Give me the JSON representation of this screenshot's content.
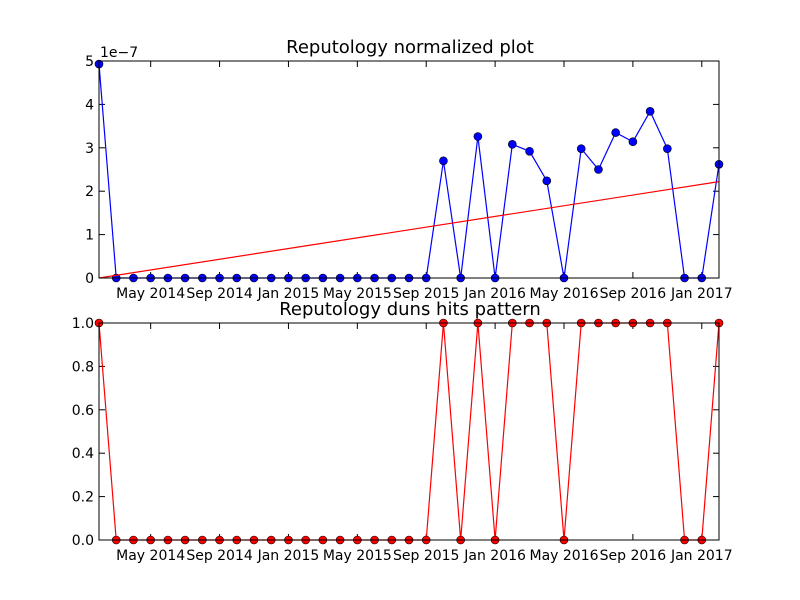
{
  "chart_data": [
    {
      "type": "line",
      "title": "Reputology normalized plot",
      "xlabel": "",
      "ylabel": "",
      "y_scale_label": "1e−7",
      "x_range": [
        "2014-02",
        "2017-02"
      ],
      "ylim": [
        0,
        5
      ],
      "y_ticks": [
        0,
        1,
        2,
        3,
        4,
        5
      ],
      "x_ticks": [
        {
          "value": "2014-05",
          "label": "May 2014"
        },
        {
          "value": "2014-09",
          "label": "Sep 2014"
        },
        {
          "value": "2015-01",
          "label": "Jan 2015"
        },
        {
          "value": "2015-05",
          "label": "May 2015"
        },
        {
          "value": "2015-09",
          "label": "Sep 2015"
        },
        {
          "value": "2016-01",
          "label": "Jan 2016"
        },
        {
          "value": "2016-05",
          "label": "May 2016"
        },
        {
          "value": "2016-09",
          "label": "Sep 2016"
        },
        {
          "value": "2017-01",
          "label": "Jan 2017"
        }
      ],
      "grid": false,
      "series": [
        {
          "color": "#0000ff",
          "marker": "circle",
          "points": [
            {
              "x": "2014-02",
              "y": 4.93
            },
            {
              "x": "2014-03",
              "y": 0
            },
            {
              "x": "2014-04",
              "y": 0
            },
            {
              "x": "2014-05",
              "y": 0
            },
            {
              "x": "2014-06",
              "y": 0
            },
            {
              "x": "2014-07",
              "y": 0
            },
            {
              "x": "2014-08",
              "y": 0
            },
            {
              "x": "2014-09",
              "y": 0
            },
            {
              "x": "2014-10",
              "y": 0
            },
            {
              "x": "2014-11",
              "y": 0
            },
            {
              "x": "2014-12",
              "y": 0
            },
            {
              "x": "2015-01",
              "y": 0
            },
            {
              "x": "2015-02",
              "y": 0
            },
            {
              "x": "2015-03",
              "y": 0
            },
            {
              "x": "2015-04",
              "y": 0
            },
            {
              "x": "2015-05",
              "y": 0
            },
            {
              "x": "2015-06",
              "y": 0
            },
            {
              "x": "2015-07",
              "y": 0
            },
            {
              "x": "2015-08",
              "y": 0
            },
            {
              "x": "2015-09",
              "y": 0
            },
            {
              "x": "2015-10",
              "y": 2.7
            },
            {
              "x": "2015-11",
              "y": 0
            },
            {
              "x": "2015-12",
              "y": 3.26
            },
            {
              "x": "2016-01",
              "y": 0
            },
            {
              "x": "2016-02",
              "y": 3.08
            },
            {
              "x": "2016-03",
              "y": 2.92
            },
            {
              "x": "2016-04",
              "y": 2.24
            },
            {
              "x": "2016-05",
              "y": 0
            },
            {
              "x": "2016-06",
              "y": 2.98
            },
            {
              "x": "2016-07",
              "y": 2.5
            },
            {
              "x": "2016-08",
              "y": 3.35
            },
            {
              "x": "2016-09",
              "y": 3.14
            },
            {
              "x": "2016-10",
              "y": 3.84
            },
            {
              "x": "2016-11",
              "y": 2.98
            },
            {
              "x": "2016-12",
              "y": 0
            },
            {
              "x": "2017-01",
              "y": 0
            },
            {
              "x": "2017-02",
              "y": 2.62
            }
          ]
        },
        {
          "color": "#ff0000",
          "marker": "none",
          "points": [
            {
              "x": "2014-02",
              "y": 0
            },
            {
              "x": "2017-02",
              "y": 2.22
            }
          ]
        }
      ]
    },
    {
      "type": "line",
      "title": "Reputology duns hits pattern",
      "xlabel": "",
      "ylabel": "",
      "x_range": [
        "2014-02",
        "2017-02"
      ],
      "ylim": [
        0,
        1
      ],
      "y_ticks": [
        0.0,
        0.2,
        0.4,
        0.6,
        0.8,
        1.0
      ],
      "x_ticks": [
        {
          "value": "2014-05",
          "label": "May 2014"
        },
        {
          "value": "2014-09",
          "label": "Sep 2014"
        },
        {
          "value": "2015-01",
          "label": "Jan 2015"
        },
        {
          "value": "2015-05",
          "label": "May 2015"
        },
        {
          "value": "2015-09",
          "label": "Sep 2015"
        },
        {
          "value": "2016-01",
          "label": "Jan 2016"
        },
        {
          "value": "2016-05",
          "label": "May 2016"
        },
        {
          "value": "2016-09",
          "label": "Sep 2016"
        },
        {
          "value": "2017-01",
          "label": "Jan 2017"
        }
      ],
      "grid": false,
      "series": [
        {
          "color": "#ff0000",
          "marker": "circle",
          "points": [
            {
              "x": "2014-02",
              "y": 1
            },
            {
              "x": "2014-03",
              "y": 0
            },
            {
              "x": "2014-04",
              "y": 0
            },
            {
              "x": "2014-05",
              "y": 0
            },
            {
              "x": "2014-06",
              "y": 0
            },
            {
              "x": "2014-07",
              "y": 0
            },
            {
              "x": "2014-08",
              "y": 0
            },
            {
              "x": "2014-09",
              "y": 0
            },
            {
              "x": "2014-10",
              "y": 0
            },
            {
              "x": "2014-11",
              "y": 0
            },
            {
              "x": "2014-12",
              "y": 0
            },
            {
              "x": "2015-01",
              "y": 0
            },
            {
              "x": "2015-02",
              "y": 0
            },
            {
              "x": "2015-03",
              "y": 0
            },
            {
              "x": "2015-04",
              "y": 0
            },
            {
              "x": "2015-05",
              "y": 0
            },
            {
              "x": "2015-06",
              "y": 0
            },
            {
              "x": "2015-07",
              "y": 0
            },
            {
              "x": "2015-08",
              "y": 0
            },
            {
              "x": "2015-09",
              "y": 0
            },
            {
              "x": "2015-10",
              "y": 1
            },
            {
              "x": "2015-11",
              "y": 0
            },
            {
              "x": "2015-12",
              "y": 1
            },
            {
              "x": "2016-01",
              "y": 0
            },
            {
              "x": "2016-02",
              "y": 1
            },
            {
              "x": "2016-03",
              "y": 1
            },
            {
              "x": "2016-04",
              "y": 1
            },
            {
              "x": "2016-05",
              "y": 0
            },
            {
              "x": "2016-06",
              "y": 1
            },
            {
              "x": "2016-07",
              "y": 1
            },
            {
              "x": "2016-08",
              "y": 1
            },
            {
              "x": "2016-09",
              "y": 1
            },
            {
              "x": "2016-10",
              "y": 1
            },
            {
              "x": "2016-11",
              "y": 1
            },
            {
              "x": "2016-12",
              "y": 0
            },
            {
              "x": "2017-01",
              "y": 0
            },
            {
              "x": "2017-02",
              "y": 1
            }
          ]
        }
      ]
    }
  ]
}
